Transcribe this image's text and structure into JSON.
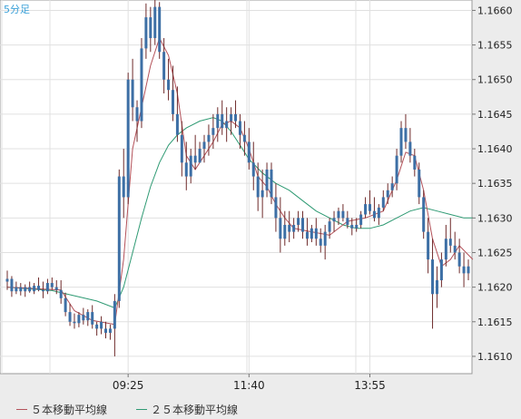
{
  "header": {
    "timeframe": "5分足"
  },
  "legend": {
    "ma5": "５本移動平均線",
    "ma25": "２５本移動平均線"
  },
  "colors": {
    "candle": "#3d6fa5",
    "wick": "#6e2a2a",
    "ma5": "#b4525a",
    "ma25": "#2e9a73",
    "grid": "#e0e0e0",
    "timeframe": "#3aa0d8"
  },
  "chart_data": {
    "type": "candlestick",
    "ylim": [
      1.16075,
      1.16615
    ],
    "y_ticks": [
      "1.1660",
      "1.1655",
      "1.1650",
      "1.1645",
      "1.1640",
      "1.1635",
      "1.1630",
      "1.1625",
      "1.1620",
      "1.1615",
      "1.1610"
    ],
    "x_ticks": [
      "09:25",
      "11:40",
      "13:55"
    ],
    "candles": [
      [
        1.16208,
        1.16224,
        1.16196,
        1.16212
      ],
      [
        1.16212,
        1.16216,
        1.16186,
        1.16194
      ],
      [
        1.16194,
        1.16208,
        1.1619,
        1.162
      ],
      [
        1.162,
        1.16206,
        1.16188,
        1.16194
      ],
      [
        1.16194,
        1.16204,
        1.16186,
        1.162
      ],
      [
        1.162,
        1.16208,
        1.16192,
        1.16194
      ],
      [
        1.16194,
        1.16206,
        1.1619,
        1.16202
      ],
      [
        1.16202,
        1.16214,
        1.16194,
        1.16196
      ],
      [
        1.16196,
        1.16208,
        1.16184,
        1.16194
      ],
      [
        1.16194,
        1.16212,
        1.1619,
        1.16206
      ],
      [
        1.16206,
        1.16214,
        1.16196,
        1.162
      ],
      [
        1.162,
        1.1621,
        1.1619,
        1.16196
      ],
      [
        1.16196,
        1.1621,
        1.16176,
        1.16184
      ],
      [
        1.16184,
        1.16192,
        1.16158,
        1.16164
      ],
      [
        1.16164,
        1.16176,
        1.16144,
        1.1615
      ],
      [
        1.1615,
        1.16162,
        1.1614,
        1.16148
      ],
      [
        1.16148,
        1.16164,
        1.16142,
        1.1616
      ],
      [
        1.1616,
        1.1617,
        1.16146,
        1.16152
      ],
      [
        1.16152,
        1.16168,
        1.16144,
        1.16164
      ],
      [
        1.16164,
        1.16174,
        1.1614,
        1.16146
      ],
      [
        1.16146,
        1.1615,
        1.1613,
        1.1614
      ],
      [
        1.1614,
        1.16158,
        1.16132,
        1.1615
      ],
      [
        1.1614,
        1.1615,
        1.16126,
        1.16134
      ],
      [
        1.16134,
        1.16146,
        1.16124,
        1.1614
      ],
      [
        1.1614,
        1.1619,
        1.161,
        1.1618
      ],
      [
        1.1618,
        1.1637,
        1.1617,
        1.1636
      ],
      [
        1.1636,
        1.164,
        1.163,
        1.1633
      ],
      [
        1.1633,
        1.1651,
        1.1632,
        1.165
      ],
      [
        1.165,
        1.1653,
        1.1644,
        1.1646
      ],
      [
        1.1646,
        1.1647,
        1.1641,
        1.1644
      ],
      [
        1.1644,
        1.1656,
        1.1643,
        1.16545
      ],
      [
        1.16545,
        1.1661,
        1.1653,
        1.1659
      ],
      [
        1.1659,
        1.16605,
        1.1654,
        1.1656
      ],
      [
        1.1656,
        1.1662,
        1.1655,
        1.16605
      ],
      [
        1.16605,
        1.16612,
        1.1653,
        1.1654
      ],
      [
        1.1654,
        1.1656,
        1.1648,
        1.165
      ],
      [
        1.165,
        1.1653,
        1.1647,
        1.16485
      ],
      [
        1.16485,
        1.1652,
        1.1644,
        1.1645
      ],
      [
        1.1645,
        1.1649,
        1.1641,
        1.1642
      ],
      [
        1.1642,
        1.1644,
        1.1636,
        1.1638
      ],
      [
        1.1638,
        1.1641,
        1.1634,
        1.1636
      ],
      [
        1.1636,
        1.164,
        1.1635,
        1.1639
      ],
      [
        1.1639,
        1.1642,
        1.1637,
        1.1638
      ],
      [
        1.1638,
        1.1641,
        1.1638,
        1.164
      ],
      [
        1.164,
        1.1642,
        1.1638,
        1.1641
      ],
      [
        1.1641,
        1.16435,
        1.1639,
        1.1642
      ],
      [
        1.1642,
        1.1645,
        1.164,
        1.1643
      ],
      [
        1.1643,
        1.1646,
        1.1641,
        1.1645
      ],
      [
        1.1645,
        1.1647,
        1.1642,
        1.1643
      ],
      [
        1.1643,
        1.1646,
        1.1641,
        1.1644
      ],
      [
        1.1644,
        1.1646,
        1.1642,
        1.1645
      ],
      [
        1.1645,
        1.1647,
        1.1643,
        1.1644
      ],
      [
        1.1644,
        1.1645,
        1.164,
        1.1642
      ],
      [
        1.1642,
        1.1644,
        1.1639,
        1.1641
      ],
      [
        1.1641,
        1.1643,
        1.1637,
        1.1638
      ],
      [
        1.1638,
        1.1641,
        1.1634,
        1.1636
      ],
      [
        1.1636,
        1.1638,
        1.1631,
        1.1633
      ],
      [
        1.1633,
        1.1637,
        1.163,
        1.1634
      ],
      [
        1.1634,
        1.1638,
        1.1633,
        1.1637
      ],
      [
        1.1637,
        1.1638,
        1.1632,
        1.1633
      ],
      [
        1.1633,
        1.1635,
        1.1628,
        1.163
      ],
      [
        1.163,
        1.1633,
        1.1625,
        1.1627
      ],
      [
        1.1627,
        1.1631,
        1.1626,
        1.1629
      ],
      [
        1.1629,
        1.1631,
        1.16265,
        1.1628
      ],
      [
        1.1628,
        1.163,
        1.1627,
        1.1629
      ],
      [
        1.1629,
        1.1631,
        1.1628,
        1.163
      ],
      [
        1.163,
        1.1631,
        1.1627,
        1.1628
      ],
      [
        1.1628,
        1.163,
        1.1626,
        1.1627
      ],
      [
        1.1627,
        1.1629,
        1.16265,
        1.16285
      ],
      [
        1.16285,
        1.163,
        1.1626,
        1.1627
      ],
      [
        1.1627,
        1.16285,
        1.1625,
        1.1626
      ],
      [
        1.1626,
        1.1629,
        1.1624,
        1.1628
      ],
      [
        1.1628,
        1.163,
        1.1627,
        1.16295
      ],
      [
        1.16295,
        1.1631,
        1.1628,
        1.163
      ],
      [
        1.163,
        1.16315,
        1.1629,
        1.1631
      ],
      [
        1.1631,
        1.1632,
        1.16295,
        1.163
      ],
      [
        1.163,
        1.1631,
        1.16285,
        1.1629
      ],
      [
        1.1629,
        1.163,
        1.16275,
        1.16285
      ],
      [
        1.16285,
        1.163,
        1.1628,
        1.1629
      ],
      [
        1.1629,
        1.1631,
        1.16285,
        1.16305
      ],
      [
        1.16305,
        1.1633,
        1.163,
        1.1632
      ],
      [
        1.1632,
        1.1634,
        1.16305,
        1.1631
      ],
      [
        1.1631,
        1.1633,
        1.16295,
        1.163
      ],
      [
        1.163,
        1.1632,
        1.1629,
        1.16315
      ],
      [
        1.16315,
        1.1634,
        1.1631,
        1.1633
      ],
      [
        1.1633,
        1.1635,
        1.1632,
        1.1634
      ],
      [
        1.1634,
        1.1636,
        1.1633,
        1.1635
      ],
      [
        1.1635,
        1.164,
        1.1634,
        1.1639
      ],
      [
        1.1639,
        1.1644,
        1.1638,
        1.1643
      ],
      [
        1.1643,
        1.1645,
        1.164,
        1.1641
      ],
      [
        1.1641,
        1.1643,
        1.1638,
        1.1639
      ],
      [
        1.1639,
        1.164,
        1.1636,
        1.1637
      ],
      [
        1.1637,
        1.1638,
        1.1632,
        1.1633
      ],
      [
        1.1633,
        1.1634,
        1.1627,
        1.1628
      ],
      [
        1.1628,
        1.163,
        1.1622,
        1.1624
      ],
      [
        1.1624,
        1.1627,
        1.1614,
        1.1619
      ],
      [
        1.1619,
        1.1623,
        1.1617,
        1.1621
      ],
      [
        1.1621,
        1.1625,
        1.162,
        1.1624
      ],
      [
        1.1624,
        1.1629,
        1.1623,
        1.1627
      ],
      [
        1.1627,
        1.163,
        1.1625,
        1.1626
      ],
      [
        1.1626,
        1.1628,
        1.1624,
        1.1625
      ],
      [
        1.1625,
        1.1627,
        1.1622,
        1.1623
      ],
      [
        1.1623,
        1.1625,
        1.162,
        1.1622
      ],
      [
        1.1622,
        1.1624,
        1.1621,
        1.1623
      ]
    ],
    "ma5": [
      [
        0,
        1.162
      ],
      [
        12,
        1.16196
      ],
      [
        15,
        1.16166
      ],
      [
        19,
        1.16152
      ],
      [
        24,
        1.16146
      ],
      [
        26,
        1.1624
      ],
      [
        28,
        1.164
      ],
      [
        30,
        1.1646
      ],
      [
        32,
        1.1652
      ],
      [
        34,
        1.1656
      ],
      [
        36,
        1.16535
      ],
      [
        38,
        1.1648
      ],
      [
        40,
        1.1639
      ],
      [
        42,
        1.1637
      ],
      [
        44,
        1.1639
      ],
      [
        46,
        1.1641
      ],
      [
        48,
        1.16435
      ],
      [
        50,
        1.1644
      ],
      [
        52,
        1.1643
      ],
      [
        54,
        1.164
      ],
      [
        56,
        1.1636
      ],
      [
        58,
        1.16345
      ],
      [
        60,
        1.1632
      ],
      [
        62,
        1.163
      ],
      [
        64,
        1.16285
      ],
      [
        68,
        1.1628
      ],
      [
        72,
        1.16275
      ],
      [
        76,
        1.16295
      ],
      [
        80,
        1.163
      ],
      [
        84,
        1.1631
      ],
      [
        87,
        1.16355
      ],
      [
        89,
        1.16395
      ],
      [
        91,
        1.1639
      ],
      [
        93,
        1.1634
      ],
      [
        95,
        1.1627
      ],
      [
        97,
        1.1623
      ],
      [
        99,
        1.1624
      ],
      [
        101,
        1.1626
      ],
      [
        104,
        1.1624
      ]
    ],
    "ma25": [
      [
        0,
        1.162
      ],
      [
        10,
        1.16195
      ],
      [
        20,
        1.1618
      ],
      [
        24,
        1.1617
      ],
      [
        26,
        1.162
      ],
      [
        28,
        1.1625
      ],
      [
        30,
        1.163
      ],
      [
        32,
        1.16345
      ],
      [
        34,
        1.1638
      ],
      [
        36,
        1.16405
      ],
      [
        38,
        1.1642
      ],
      [
        40,
        1.1643
      ],
      [
        43,
        1.1644
      ],
      [
        46,
        1.16445
      ],
      [
        48,
        1.1644
      ],
      [
        50,
        1.16425
      ],
      [
        52,
        1.16405
      ],
      [
        54,
        1.16385
      ],
      [
        57,
        1.16365
      ],
      [
        60,
        1.1635
      ],
      [
        63,
        1.1634
      ],
      [
        66,
        1.16325
      ],
      [
        69,
        1.1631
      ],
      [
        72,
        1.163
      ],
      [
        75,
        1.1629
      ],
      [
        78,
        1.16285
      ],
      [
        81,
        1.16285
      ],
      [
        84,
        1.1629
      ],
      [
        87,
        1.163
      ],
      [
        90,
        1.1631
      ],
      [
        93,
        1.16315
      ],
      [
        96,
        1.1631
      ],
      [
        99,
        1.16305
      ],
      [
        102,
        1.163
      ],
      [
        104,
        1.163
      ]
    ]
  }
}
